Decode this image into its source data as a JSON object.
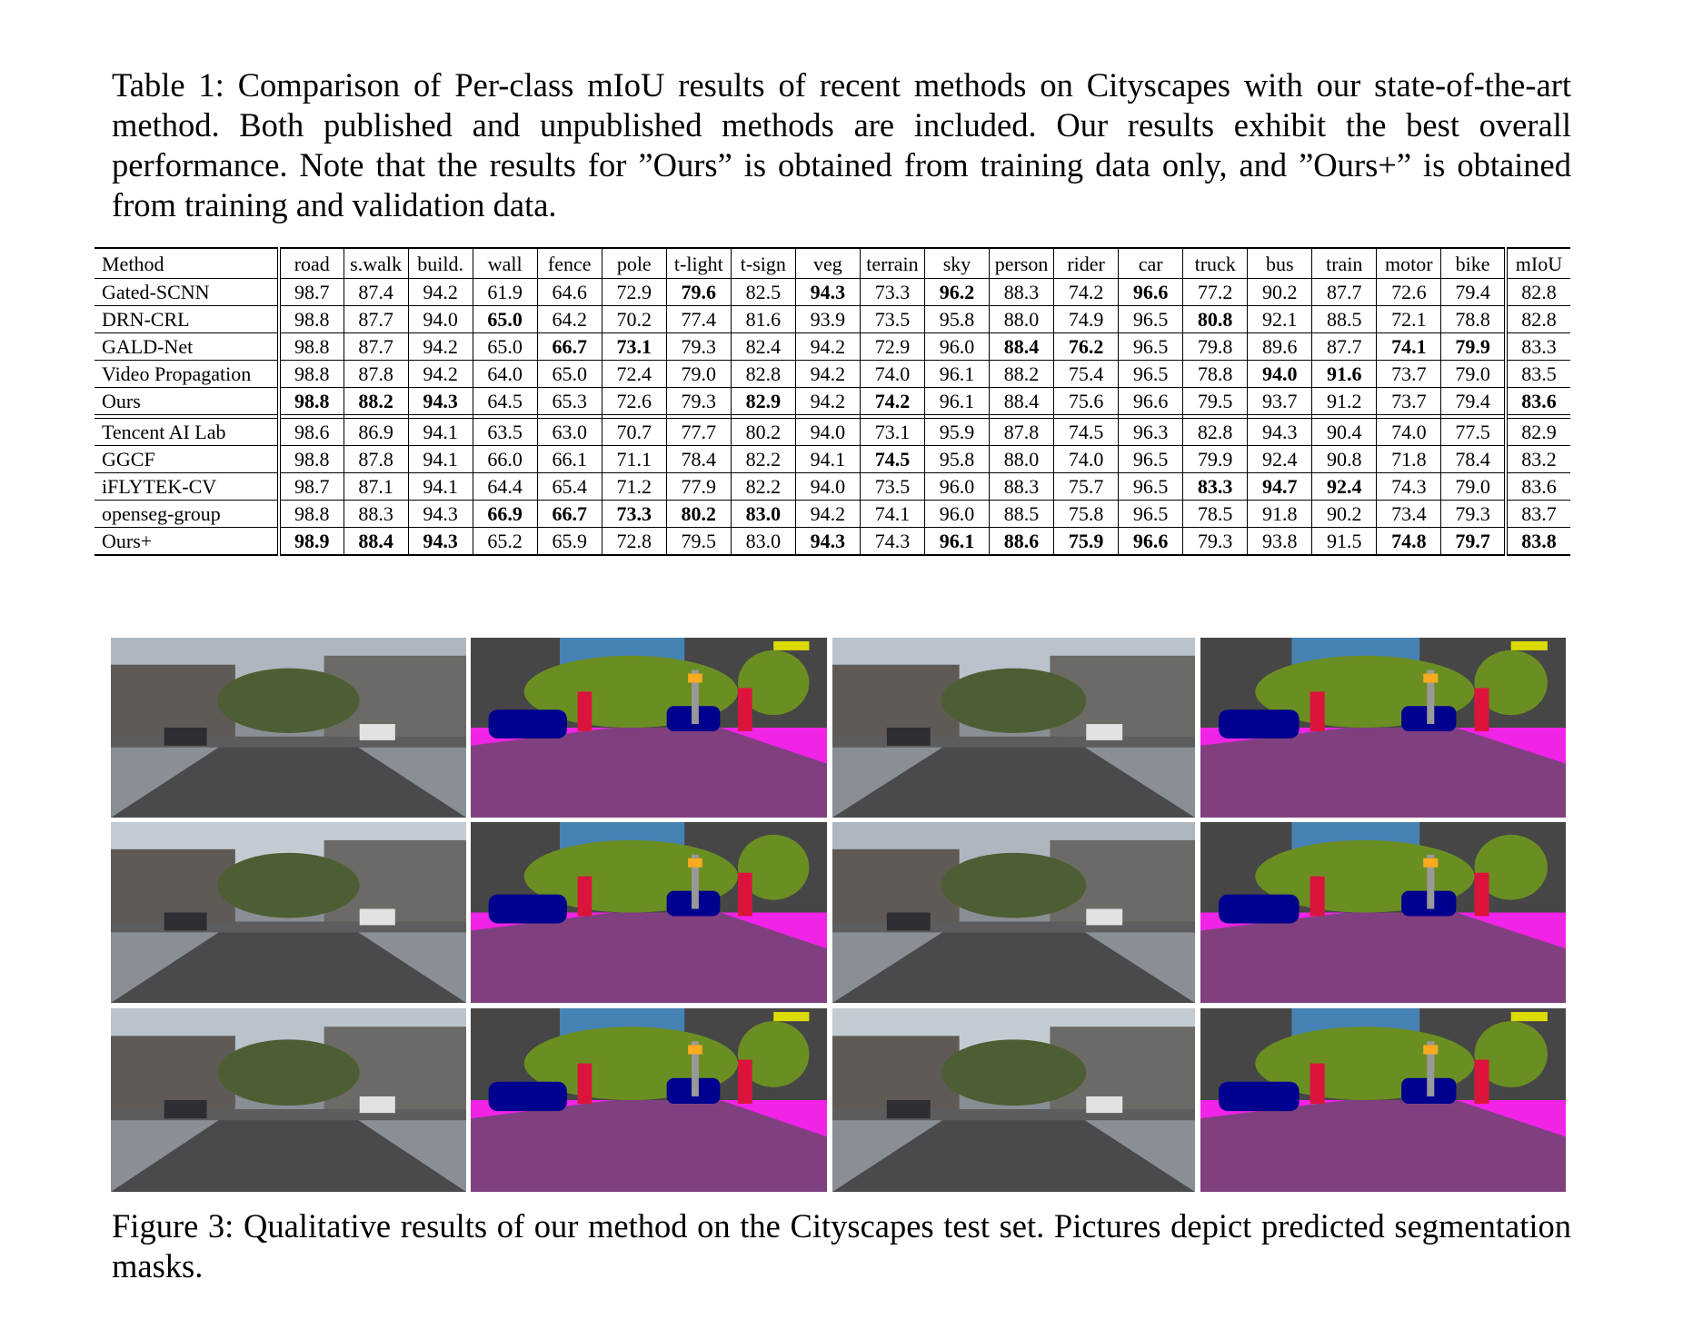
{
  "table_caption": "Table 1: Comparison of Per-class mIoU results of recent methods on Cityscapes with our state-of-the-art method. Both published and unpublished methods are included. Our results exhibit the best overall performance. Note that the results for ”Ours” is obtained from training data only, and ”Ours+” is obtained from training and validation data.",
  "columns": [
    "Method",
    "road",
    "s.walk",
    "build.",
    "wall",
    "fence",
    "pole",
    "t-light",
    "t-sign",
    "veg",
    "terrain",
    "sky",
    "person",
    "rider",
    "car",
    "truck",
    "bus",
    "train",
    "motor",
    "bike",
    "mIoU"
  ],
  "group1": [
    {
      "method": "Gated-SCNN",
      "vals": [
        "98.7",
        "87.4",
        "94.2",
        "61.9",
        "64.6",
        "72.9",
        "79.6",
        "82.5",
        "94.3",
        "73.3",
        "96.2",
        "88.3",
        "74.2",
        "96.6",
        "77.2",
        "90.2",
        "87.7",
        "72.6",
        "79.4",
        "82.8"
      ],
      "bold": [
        6,
        8,
        10,
        13
      ]
    },
    {
      "method": "DRN-CRL",
      "vals": [
        "98.8",
        "87.7",
        "94.0",
        "65.0",
        "64.2",
        "70.2",
        "77.4",
        "81.6",
        "93.9",
        "73.5",
        "95.8",
        "88.0",
        "74.9",
        "96.5",
        "80.8",
        "92.1",
        "88.5",
        "72.1",
        "78.8",
        "82.8"
      ],
      "bold": [
        3,
        14
      ]
    },
    {
      "method": "GALD-Net",
      "vals": [
        "98.8",
        "87.7",
        "94.2",
        "65.0",
        "66.7",
        "73.1",
        "79.3",
        "82.4",
        "94.2",
        "72.9",
        "96.0",
        "88.4",
        "76.2",
        "96.5",
        "79.8",
        "89.6",
        "87.7",
        "74.1",
        "79.9",
        "83.3"
      ],
      "bold": [
        4,
        5,
        11,
        12,
        17,
        18
      ]
    },
    {
      "method": "Video Propagation",
      "vals": [
        "98.8",
        "87.8",
        "94.2",
        "64.0",
        "65.0",
        "72.4",
        "79.0",
        "82.8",
        "94.2",
        "74.0",
        "96.1",
        "88.2",
        "75.4",
        "96.5",
        "78.8",
        "94.0",
        "91.6",
        "73.7",
        "79.0",
        "83.5"
      ],
      "bold": [
        15,
        16
      ]
    },
    {
      "method": "Ours",
      "vals": [
        "98.8",
        "88.2",
        "94.3",
        "64.5",
        "65.3",
        "72.6",
        "79.3",
        "82.9",
        "94.2",
        "74.2",
        "96.1",
        "88.4",
        "75.6",
        "96.6",
        "79.5",
        "93.7",
        "91.2",
        "73.7",
        "79.4",
        "83.6"
      ],
      "bold": [
        0,
        1,
        2,
        7,
        9,
        19
      ]
    }
  ],
  "group2": [
    {
      "method": "Tencent AI Lab",
      "vals": [
        "98.6",
        "86.9",
        "94.1",
        "63.5",
        "63.0",
        "70.7",
        "77.7",
        "80.2",
        "94.0",
        "73.1",
        "95.9",
        "87.8",
        "74.5",
        "96.3",
        "82.8",
        "94.3",
        "90.4",
        "74.0",
        "77.5",
        "82.9"
      ],
      "bold": []
    },
    {
      "method": "GGCF",
      "vals": [
        "98.8",
        "87.8",
        "94.1",
        "66.0",
        "66.1",
        "71.1",
        "78.4",
        "82.2",
        "94.1",
        "74.5",
        "95.8",
        "88.0",
        "74.0",
        "96.5",
        "79.9",
        "92.4",
        "90.8",
        "71.8",
        "78.4",
        "83.2"
      ],
      "bold": [
        9
      ]
    },
    {
      "method": "iFLYTEK-CV",
      "vals": [
        "98.7",
        "87.1",
        "94.1",
        "64.4",
        "65.4",
        "71.2",
        "77.9",
        "82.2",
        "94.0",
        "73.5",
        "96.0",
        "88.3",
        "75.7",
        "96.5",
        "83.3",
        "94.7",
        "92.4",
        "74.3",
        "79.0",
        "83.6"
      ],
      "bold": [
        14,
        15,
        16
      ]
    },
    {
      "method": "openseg-group",
      "vals": [
        "98.8",
        "88.3",
        "94.3",
        "66.9",
        "66.7",
        "73.3",
        "80.2",
        "83.0",
        "94.2",
        "74.1",
        "96.0",
        "88.5",
        "75.8",
        "96.5",
        "78.5",
        "91.8",
        "90.2",
        "73.4",
        "79.3",
        "83.7"
      ],
      "bold": [
        3,
        4,
        5,
        6,
        7
      ]
    },
    {
      "method": "Ours+",
      "vals": [
        "98.9",
        "88.4",
        "94.3",
        "65.2",
        "65.9",
        "72.8",
        "79.5",
        "83.0",
        "94.3",
        "74.3",
        "96.1",
        "88.6",
        "75.9",
        "96.6",
        "79.3",
        "93.8",
        "91.5",
        "74.8",
        "79.7",
        "83.8"
      ],
      "bold": [
        0,
        1,
        2,
        8,
        10,
        11,
        12,
        13,
        17,
        18,
        19
      ]
    }
  ],
  "figure_caption": "Figure 3: Qualitative results of our method on the Cityscapes test set. Pictures depict predicted segmentation masks.",
  "palette": {
    "road": "#80407f",
    "sidewalk": "#f023e6",
    "building": "#464646",
    "vegetation": "#6b8e23",
    "sky": "#4682b4",
    "car": "#00008e",
    "person": "#dc143c",
    "sign": "#dcdc00",
    "light": "#faaa1e",
    "terrain": "#98fb98",
    "pole": "#999999",
    "truck": "#003c64"
  }
}
